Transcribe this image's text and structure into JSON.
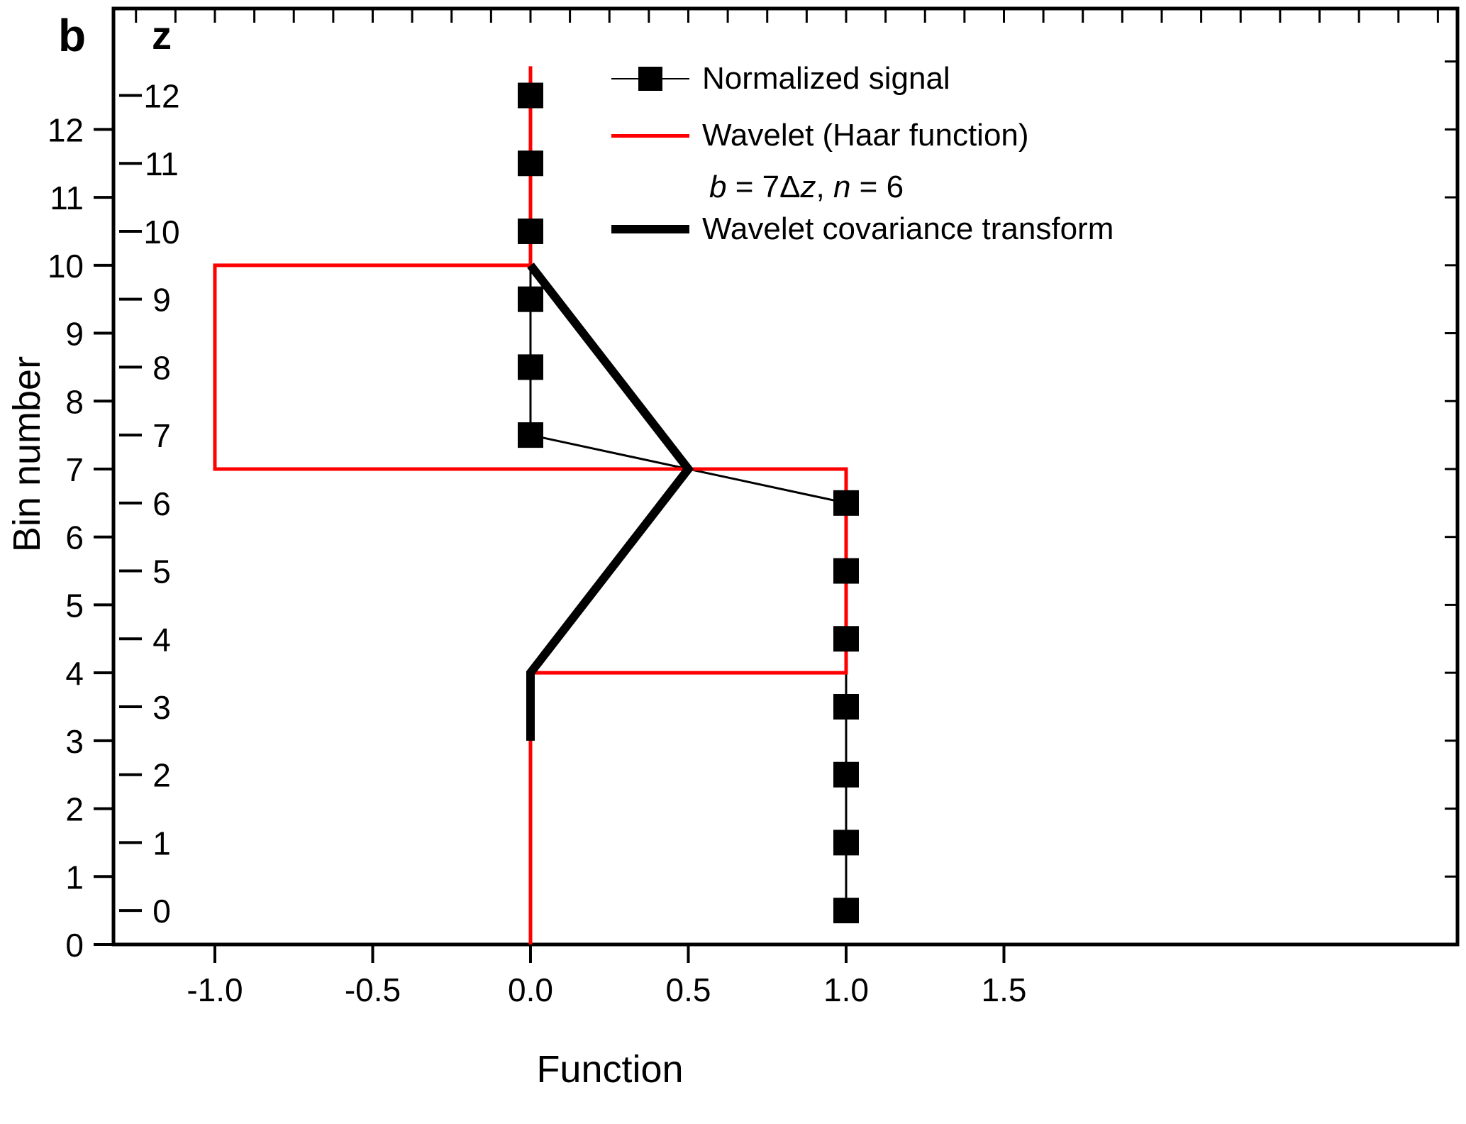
{
  "panel": {
    "label": "b"
  },
  "colors": {
    "background": "#ffffff",
    "foreground": "#000000",
    "wavelet_red": "#ff0000"
  },
  "axes": {
    "x": {
      "title": "Function",
      "range": [
        -1.3213,
        2.9371
      ],
      "ticks": [
        -1.0,
        -0.5,
        0.0,
        0.5,
        1.0,
        1.5
      ],
      "tick_labels": [
        "-1.0",
        "-0.5",
        "0.0",
        "0.5",
        "1.0",
        "1.5"
      ],
      "minor_step": 0.125
    },
    "y_bin": {
      "title": "Bin number",
      "range": [
        0,
        13.78
      ],
      "ticks": [
        0,
        1,
        2,
        3,
        4,
        5,
        6,
        7,
        8,
        9,
        10,
        11,
        12
      ],
      "tick_labels": [
        "0",
        "1",
        "2",
        "3",
        "4",
        "5",
        "6",
        "7",
        "8",
        "9",
        "10",
        "11",
        "12"
      ]
    },
    "y_z": {
      "title": "z",
      "offset_bins": 0.5,
      "ticks": [
        0,
        1,
        2,
        3,
        4,
        5,
        6,
        7,
        8,
        9,
        10,
        11,
        12
      ],
      "tick_labels": [
        "0",
        "1",
        "2",
        "3",
        "4",
        "5",
        "6",
        "7",
        "8",
        "9",
        "10",
        "11",
        "12"
      ]
    }
  },
  "chart_data": {
    "type": "line",
    "title": "",
    "xlabel": "Function",
    "ylabel": "Bin number",
    "y2label": "z",
    "xlim": [
      -1.3213,
      2.9371
    ],
    "ylim_bins": [
      0,
      13.78
    ],
    "grid": false,
    "legend_position": "top-center-inside",
    "series": [
      {
        "name": "Normalized signal",
        "style": "line+markers",
        "marker": "square",
        "marker_size_px": 36,
        "color": "#000000",
        "width": 3,
        "x": [
          1.0,
          1.0,
          1.0,
          1.0,
          1.0,
          1.0,
          1.0,
          0.0,
          0.0,
          0.0,
          0.0,
          0.0,
          0.0
        ],
        "z": [
          0,
          1,
          2,
          3,
          4,
          5,
          6,
          7,
          8,
          9,
          10,
          11,
          12
        ]
      },
      {
        "name": "Wavelet (Haar function)",
        "style": "line",
        "color": "#ff0000",
        "width": 5,
        "points_x_bin": [
          [
            0,
            0
          ],
          [
            0,
            4
          ],
          [
            1,
            4
          ],
          [
            1,
            7
          ],
          [
            -1,
            7
          ],
          [
            -1,
            10
          ],
          [
            0,
            10
          ],
          [
            0,
            12.93
          ]
        ]
      },
      {
        "name": "Wavelet covariance transform",
        "style": "line",
        "color": "#000000",
        "width": 12,
        "points_x_bin": [
          [
            0,
            3
          ],
          [
            0,
            4
          ],
          [
            0.5,
            7
          ],
          [
            0,
            10
          ]
        ]
      }
    ],
    "legend": {
      "items": [
        {
          "symbol": "line-with-square-marker",
          "label": "Normalized signal"
        },
        {
          "symbol": "red-line",
          "label": "Wavelet (Haar function)"
        },
        {
          "symbol": "none",
          "label": "b = 7Δz, n = 6"
        },
        {
          "symbol": "thick-black-line",
          "label": "Wavelet covariance transform"
        }
      ],
      "annotation_parts": [
        {
          "text": "b",
          "italic": true
        },
        {
          "text": " = 7",
          "italic": false
        },
        {
          "text": "Δ",
          "italic": false
        },
        {
          "text": "z",
          "italic": true
        },
        {
          "text": ", ",
          "italic": false
        },
        {
          "text": "n",
          "italic": true
        },
        {
          "text": " = 6",
          "italic": false
        }
      ]
    }
  }
}
